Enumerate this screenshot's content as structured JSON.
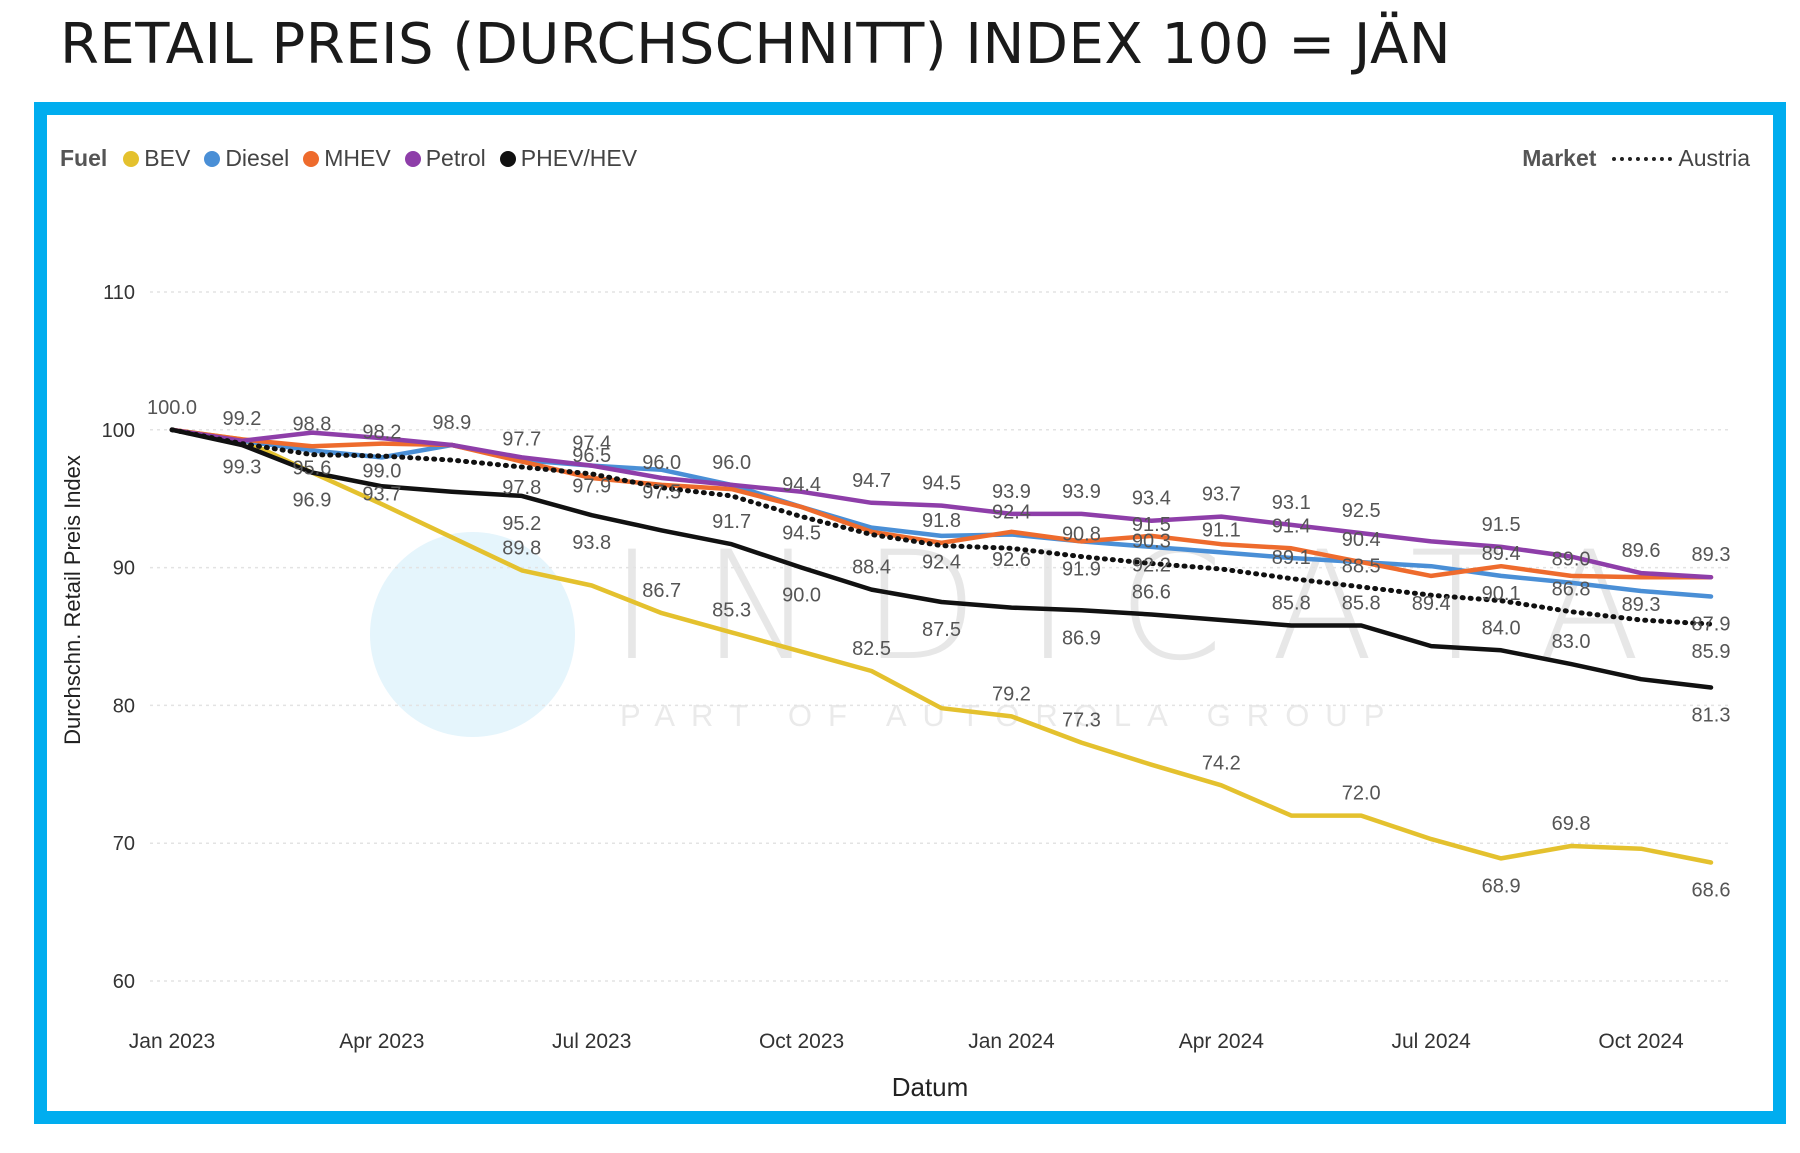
{
  "page_title": "RETAIL PREIS (DURCHSCHNITT) INDEX 100 = JÄN",
  "watermark": {
    "name": "INDICATA",
    "tagline": "PART OF AUTOROLA GROUP"
  },
  "legend": {
    "fuel_title": "Fuel",
    "market_title": "Market",
    "market_item": "Austria"
  },
  "chart_data": {
    "type": "line",
    "title": "",
    "xlabel": "Datum",
    "ylabel": "Durchschn. Retail Preis Index",
    "ylim": [
      60,
      110
    ],
    "yticks": [
      60,
      70,
      80,
      90,
      100,
      110
    ],
    "grid": true,
    "legend_position": "top-left",
    "x": [
      "2023-01",
      "2023-02",
      "2023-03",
      "2023-04",
      "2023-05",
      "2023-06",
      "2023-07",
      "2023-08",
      "2023-09",
      "2023-10",
      "2023-11",
      "2023-12",
      "2024-01",
      "2024-02",
      "2024-03",
      "2024-04",
      "2024-05",
      "2024-06",
      "2024-07",
      "2024-08",
      "2024-09",
      "2024-10",
      "2024-11"
    ],
    "xtick_labels": [
      {
        "x": "2023-01",
        "label": "Jan 2023"
      },
      {
        "x": "2023-04",
        "label": "Apr 2023"
      },
      {
        "x": "2023-07",
        "label": "Jul 2023"
      },
      {
        "x": "2023-10",
        "label": "Oct 2023"
      },
      {
        "x": "2024-01",
        "label": "Jan 2024"
      },
      {
        "x": "2024-04",
        "label": "Apr 2024"
      },
      {
        "x": "2024-07",
        "label": "Jul 2024"
      },
      {
        "x": "2024-10",
        "label": "Oct 2024"
      }
    ],
    "series": [
      {
        "name": "BEV",
        "color": "#e4c12e",
        "style": "solid",
        "values": [
          100.0,
          99.3,
          96.9,
          94.6,
          92.2,
          89.8,
          88.7,
          86.7,
          85.3,
          83.9,
          82.5,
          79.8,
          79.2,
          77.3,
          75.7,
          74.2,
          72.0,
          72.0,
          70.3,
          68.9,
          69.8,
          69.6,
          68.6
        ]
      },
      {
        "name": "Diesel",
        "color": "#4a8fd6",
        "style": "solid",
        "values": [
          100.0,
          99.2,
          98.5,
          98.0,
          98.9,
          97.8,
          97.4,
          97.1,
          96.0,
          94.4,
          92.9,
          92.3,
          92.4,
          91.9,
          91.5,
          91.1,
          90.7,
          90.4,
          90.1,
          89.4,
          88.9,
          88.3,
          87.9
        ]
      },
      {
        "name": "MHEV",
        "color": "#ee6b2d",
        "style": "solid",
        "values": [
          100.0,
          99.3,
          98.8,
          99.0,
          98.9,
          97.7,
          96.5,
          96.0,
          95.7,
          94.4,
          92.6,
          91.8,
          92.6,
          91.9,
          92.3,
          91.7,
          91.4,
          90.4,
          89.4,
          90.1,
          89.4,
          89.3,
          89.3
        ]
      },
      {
        "name": "Petrol",
        "color": "#8e3ea9",
        "style": "solid",
        "values": [
          100.0,
          99.2,
          99.8,
          99.4,
          98.9,
          98.0,
          97.4,
          96.5,
          96.0,
          95.5,
          94.7,
          94.5,
          93.9,
          93.9,
          93.4,
          93.7,
          93.1,
          92.5,
          91.9,
          91.5,
          90.8,
          89.6,
          89.3
        ]
      },
      {
        "name": "PHEV/HEV",
        "color": "#111111",
        "style": "solid",
        "values": [
          100.0,
          98.9,
          96.9,
          95.9,
          95.5,
          95.2,
          93.8,
          92.7,
          91.7,
          90.0,
          88.4,
          87.5,
          87.1,
          86.9,
          86.6,
          86.2,
          85.8,
          85.8,
          84.3,
          84.0,
          83.0,
          81.9,
          81.3
        ]
      },
      {
        "name": "Austria",
        "color": "#111111",
        "style": "dotted",
        "values": [
          100.0,
          99.0,
          98.2,
          98.1,
          97.8,
          97.3,
          96.8,
          95.8,
          95.2,
          93.7,
          92.4,
          91.6,
          91.4,
          90.8,
          90.3,
          89.9,
          89.2,
          88.6,
          88.0,
          87.6,
          86.8,
          86.2,
          85.9
        ]
      }
    ],
    "data_labels": [
      {
        "x": "2023-01",
        "y": 100.0,
        "text": "100.0",
        "color": "#555555",
        "pos": "above"
      },
      {
        "x": "2023-02",
        "y": 99.2,
        "text": "99.2",
        "color": "#555555",
        "pos": "above"
      },
      {
        "x": "2023-02",
        "y": 99.3,
        "text": "99.3",
        "color": "#555555",
        "pos": "below"
      },
      {
        "x": "2023-03",
        "y": 98.8,
        "text": "98.8",
        "color": "#555555",
        "pos": "above"
      },
      {
        "x": "2023-03",
        "y": 95.6,
        "text": "95.6",
        "color": "#555555",
        "pos": "above"
      },
      {
        "x": "2023-03",
        "y": 96.9,
        "text": "96.9",
        "color": "#555555",
        "pos": "below"
      },
      {
        "x": "2023-04",
        "y": 98.2,
        "text": "98.2",
        "color": "#555555",
        "pos": "above"
      },
      {
        "x": "2023-04",
        "y": 99.0,
        "text": "99.0",
        "color": "#555555",
        "pos": "below"
      },
      {
        "x": "2023-04",
        "y": 93.7,
        "text": "93.7",
        "color": "#555555",
        "pos": "above"
      },
      {
        "x": "2023-05",
        "y": 98.9,
        "text": "98.9",
        "color": "#555555",
        "pos": "above"
      },
      {
        "x": "2023-06",
        "y": 97.7,
        "text": "97.7",
        "color": "#555555",
        "pos": "above"
      },
      {
        "x": "2023-06",
        "y": 97.8,
        "text": "97.8",
        "color": "#555555",
        "pos": "below"
      },
      {
        "x": "2023-06",
        "y": 95.2,
        "text": "95.2",
        "color": "#555555",
        "pos": "below"
      },
      {
        "x": "2023-06",
        "y": 89.8,
        "text": "89.8",
        "color": "#555555",
        "pos": "above"
      },
      {
        "x": "2023-07",
        "y": 97.4,
        "text": "97.4",
        "color": "#555555",
        "pos": "above"
      },
      {
        "x": "2023-07",
        "y": 96.5,
        "text": "96.5",
        "color": "#555555",
        "pos": "above"
      },
      {
        "x": "2023-07",
        "y": 97.9,
        "text": "97.9",
        "color": "#555555",
        "pos": "below"
      },
      {
        "x": "2023-07",
        "y": 93.8,
        "text": "93.8",
        "color": "#555555",
        "pos": "below"
      },
      {
        "x": "2023-08",
        "y": 96.0,
        "text": "96.0",
        "color": "#555555",
        "pos": "above"
      },
      {
        "x": "2023-08",
        "y": 97.5,
        "text": "97.5",
        "color": "#555555",
        "pos": "below"
      },
      {
        "x": "2023-08",
        "y": 86.7,
        "text": "86.7",
        "color": "#555555",
        "pos": "above"
      },
      {
        "x": "2023-09",
        "y": 96.0,
        "text": "96.0",
        "color": "#555555",
        "pos": "above"
      },
      {
        "x": "2023-09",
        "y": 91.7,
        "text": "91.7",
        "color": "#555555",
        "pos": "above"
      },
      {
        "x": "2023-09",
        "y": 85.3,
        "text": "85.3",
        "color": "#555555",
        "pos": "above"
      },
      {
        "x": "2023-10",
        "y": 94.4,
        "text": "94.4",
        "color": "#555555",
        "pos": "above"
      },
      {
        "x": "2023-10",
        "y": 94.5,
        "text": "94.5",
        "color": "#555555",
        "pos": "below"
      },
      {
        "x": "2023-10",
        "y": 90.0,
        "text": "90.0",
        "color": "#555555",
        "pos": "below"
      },
      {
        "x": "2023-11",
        "y": 94.7,
        "text": "94.7",
        "color": "#555555",
        "pos": "above"
      },
      {
        "x": "2023-11",
        "y": 88.4,
        "text": "88.4",
        "color": "#555555",
        "pos": "above"
      },
      {
        "x": "2023-11",
        "y": 82.5,
        "text": "82.5",
        "color": "#555555",
        "pos": "above"
      },
      {
        "x": "2023-12",
        "y": 94.5,
        "text": "94.5",
        "color": "#555555",
        "pos": "above"
      },
      {
        "x": "2023-12",
        "y": 91.8,
        "text": "91.8",
        "color": "#555555",
        "pos": "above"
      },
      {
        "x": "2023-12",
        "y": 92.4,
        "text": "92.4",
        "color": "#555555",
        "pos": "below"
      },
      {
        "x": "2023-12",
        "y": 87.5,
        "text": "87.5",
        "color": "#555555",
        "pos": "below"
      },
      {
        "x": "2024-01",
        "y": 93.9,
        "text": "93.9",
        "color": "#555555",
        "pos": "above"
      },
      {
        "x": "2024-01",
        "y": 92.4,
        "text": "92.4",
        "color": "#555555",
        "pos": "above"
      },
      {
        "x": "2024-01",
        "y": 92.6,
        "text": "92.6",
        "color": "#555555",
        "pos": "below"
      },
      {
        "x": "2024-01",
        "y": 79.2,
        "text": "79.2",
        "color": "#555555",
        "pos": "above"
      },
      {
        "x": "2024-02",
        "y": 93.9,
        "text": "93.9",
        "color": "#555555",
        "pos": "above"
      },
      {
        "x": "2024-02",
        "y": 90.8,
        "text": "90.8",
        "color": "#555555",
        "pos": "above"
      },
      {
        "x": "2024-02",
        "y": 91.9,
        "text": "91.9",
        "color": "#555555",
        "pos": "below"
      },
      {
        "x": "2024-02",
        "y": 86.9,
        "text": "86.9",
        "color": "#555555",
        "pos": "below"
      },
      {
        "x": "2024-02",
        "y": 77.3,
        "text": "77.3",
        "color": "#555555",
        "pos": "above"
      },
      {
        "x": "2024-03",
        "y": 93.4,
        "text": "93.4",
        "color": "#555555",
        "pos": "above"
      },
      {
        "x": "2024-03",
        "y": 91.5,
        "text": "91.5",
        "color": "#555555",
        "pos": "above"
      },
      {
        "x": "2024-03",
        "y": 90.3,
        "text": "90.3",
        "color": "#555555",
        "pos": "above"
      },
      {
        "x": "2024-03",
        "y": 92.2,
        "text": "92.2",
        "color": "#555555",
        "pos": "below"
      },
      {
        "x": "2024-03",
        "y": 86.6,
        "text": "86.6",
        "color": "#555555",
        "pos": "above"
      },
      {
        "x": "2024-04",
        "y": 93.7,
        "text": "93.7",
        "color": "#555555",
        "pos": "above"
      },
      {
        "x": "2024-04",
        "y": 91.1,
        "text": "91.1",
        "color": "#555555",
        "pos": "above"
      },
      {
        "x": "2024-04",
        "y": 74.2,
        "text": "74.2",
        "color": "#555555",
        "pos": "above"
      },
      {
        "x": "2024-05",
        "y": 93.1,
        "text": "93.1",
        "color": "#555555",
        "pos": "above"
      },
      {
        "x": "2024-05",
        "y": 91.4,
        "text": "91.4",
        "color": "#555555",
        "pos": "above"
      },
      {
        "x": "2024-05",
        "y": 89.1,
        "text": "89.1",
        "color": "#555555",
        "pos": "above"
      },
      {
        "x": "2024-05",
        "y": 85.8,
        "text": "85.8",
        "color": "#555555",
        "pos": "above"
      },
      {
        "x": "2024-06",
        "y": 92.5,
        "text": "92.5",
        "color": "#555555",
        "pos": "above"
      },
      {
        "x": "2024-06",
        "y": 90.4,
        "text": "90.4",
        "color": "#555555",
        "pos": "above"
      },
      {
        "x": "2024-06",
        "y": 88.5,
        "text": "88.5",
        "color": "#555555",
        "pos": "above"
      },
      {
        "x": "2024-06",
        "y": 85.8,
        "text": "85.8",
        "color": "#555555",
        "pos": "above"
      },
      {
        "x": "2024-06",
        "y": 72.0,
        "text": "72.0",
        "color": "#555555",
        "pos": "above"
      },
      {
        "x": "2024-07",
        "y": 89.4,
        "text": "89.4",
        "color": "#555555",
        "pos": "below"
      },
      {
        "x": "2024-08",
        "y": 91.5,
        "text": "91.5",
        "color": "#555555",
        "pos": "above"
      },
      {
        "x": "2024-08",
        "y": 89.4,
        "text": "89.4",
        "color": "#555555",
        "pos": "above"
      },
      {
        "x": "2024-08",
        "y": 90.1,
        "text": "90.1",
        "color": "#555555",
        "pos": "below"
      },
      {
        "x": "2024-08",
        "y": 84.0,
        "text": "84.0",
        "color": "#555555",
        "pos": "above"
      },
      {
        "x": "2024-08",
        "y": 68.9,
        "text": "68.9",
        "color": "#555555",
        "pos": "below"
      },
      {
        "x": "2024-09",
        "y": 89.0,
        "text": "89.0",
        "color": "#555555",
        "pos": "above"
      },
      {
        "x": "2024-09",
        "y": 86.8,
        "text": "86.8",
        "color": "#555555",
        "pos": "above"
      },
      {
        "x": "2024-09",
        "y": 83.0,
        "text": "83.0",
        "color": "#555555",
        "pos": "above"
      },
      {
        "x": "2024-09",
        "y": 69.8,
        "text": "69.8",
        "color": "#555555",
        "pos": "above"
      },
      {
        "x": "2024-10",
        "y": 89.6,
        "text": "89.6",
        "color": "#555555",
        "pos": "above"
      },
      {
        "x": "2024-10",
        "y": 89.3,
        "text": "89.3",
        "color": "#555555",
        "pos": "below"
      },
      {
        "x": "2024-11",
        "y": 89.3,
        "text": "89.3",
        "color": "#555555",
        "pos": "above"
      },
      {
        "x": "2024-11",
        "y": 87.9,
        "text": "87.9",
        "color": "#555555",
        "pos": "below"
      },
      {
        "x": "2024-11",
        "y": 85.9,
        "text": "85.9",
        "color": "#555555",
        "pos": "below"
      },
      {
        "x": "2024-11",
        "y": 81.3,
        "text": "81.3",
        "color": "#555555",
        "pos": "below"
      },
      {
        "x": "2024-11",
        "y": 68.6,
        "text": "68.6",
        "color": "#555555",
        "pos": "below"
      }
    ]
  }
}
